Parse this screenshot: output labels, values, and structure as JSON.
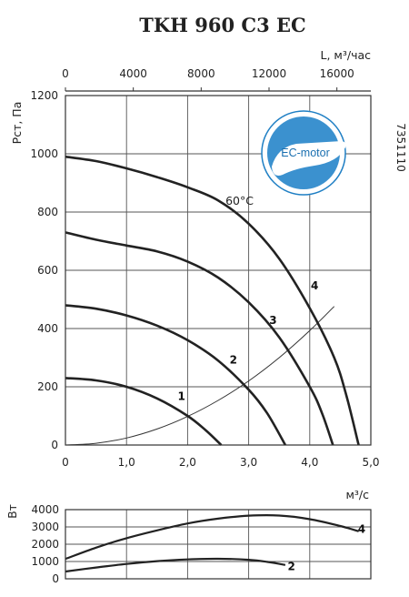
{
  "chart_data": [
    {
      "type": "line",
      "title": "TKH 960 C3 EC",
      "ylabel": "Pст, Па",
      "xlabel": "м³/с",
      "x2label": "L, м³/час",
      "xlim": [
        0,
        5
      ],
      "ylim": [
        0,
        1200
      ],
      "x2lim": [
        0,
        18000
      ],
      "x_ticks": [
        "0",
        "1,0",
        "2,0",
        "3,0",
        "4,0",
        "5,0"
      ],
      "x_tick_values": [
        0,
        1,
        2,
        3,
        4,
        5
      ],
      "y_ticks": [
        "0",
        "200",
        "400",
        "600",
        "800",
        "1000",
        "1200"
      ],
      "y_tick_values": [
        0,
        200,
        400,
        600,
        800,
        1000,
        1200
      ],
      "x2_ticks": [
        "0",
        "4000",
        "8000",
        "12000",
        "16000"
      ],
      "x2_tick_values": [
        0,
        4000,
        8000,
        12000,
        16000
      ],
      "grid": true,
      "annotation": "60°C",
      "annotation_at": [
        2.85,
        825
      ],
      "side_code": "7351110",
      "logo_text": "EC-motor",
      "series": [
        {
          "label": "1",
          "label_at": [
            1.9,
            155
          ],
          "points": [
            [
              0,
              230
            ],
            [
              0.5,
              222
            ],
            [
              1.0,
              200
            ],
            [
              1.5,
              160
            ],
            [
              2.0,
              100
            ],
            [
              2.3,
              50
            ],
            [
              2.55,
              0
            ]
          ]
        },
        {
          "label": "2",
          "label_at": [
            2.75,
            280
          ],
          "points": [
            [
              0,
              480
            ],
            [
              0.5,
              468
            ],
            [
              1.0,
              445
            ],
            [
              1.5,
              410
            ],
            [
              2.0,
              360
            ],
            [
              2.5,
              290
            ],
            [
              3.0,
              190
            ],
            [
              3.3,
              110
            ],
            [
              3.6,
              0
            ]
          ]
        },
        {
          "label": "3",
          "label_at": [
            3.4,
            415
          ],
          "points": [
            [
              0,
              730
            ],
            [
              0.5,
              705
            ],
            [
              1.0,
              685
            ],
            [
              1.5,
              665
            ],
            [
              2.0,
              630
            ],
            [
              2.5,
              575
            ],
            [
              3.0,
              490
            ],
            [
              3.5,
              370
            ],
            [
              4.0,
              200
            ],
            [
              4.2,
              110
            ],
            [
              4.38,
              0
            ]
          ]
        },
        {
          "label": "4",
          "label_at": [
            4.08,
            535
          ],
          "points": [
            [
              0,
              990
            ],
            [
              0.5,
              975
            ],
            [
              1.0,
              950
            ],
            [
              1.5,
              920
            ],
            [
              2.0,
              885
            ],
            [
              2.5,
              840
            ],
            [
              3.0,
              760
            ],
            [
              3.5,
              640
            ],
            [
              4.0,
              470
            ],
            [
              4.4,
              300
            ],
            [
              4.6,
              170
            ],
            [
              4.8,
              0
            ]
          ]
        }
      ],
      "system_curve": {
        "points": [
          [
            0,
            0
          ],
          [
            0.5,
            6
          ],
          [
            1.0,
            24
          ],
          [
            1.5,
            55
          ],
          [
            2.0,
            98
          ],
          [
            2.5,
            153
          ],
          [
            3.0,
            220
          ],
          [
            3.5,
            300
          ],
          [
            4.0,
            393
          ],
          [
            4.4,
            476
          ]
        ]
      }
    },
    {
      "type": "line",
      "ylabel": "Вт",
      "xlim": [
        0,
        5
      ],
      "ylim": [
        0,
        4000
      ],
      "y_ticks": [
        "0",
        "1000",
        "2000",
        "3000",
        "4000"
      ],
      "y_tick_values": [
        0,
        1000,
        2000,
        3000,
        4000
      ],
      "grid": true,
      "series": [
        {
          "label": "2",
          "label_at": [
            3.7,
            490
          ],
          "points": [
            [
              0,
              420
            ],
            [
              0.5,
              650
            ],
            [
              1.0,
              860
            ],
            [
              1.5,
              1020
            ],
            [
              2.0,
              1120
            ],
            [
              2.5,
              1160
            ],
            [
              3.0,
              1100
            ],
            [
              3.3,
              980
            ],
            [
              3.6,
              800
            ]
          ]
        },
        {
          "label": "4",
          "label_at": [
            4.85,
            2650
          ],
          "points": [
            [
              0,
              1150
            ],
            [
              0.5,
              1800
            ],
            [
              1.0,
              2350
            ],
            [
              1.5,
              2800
            ],
            [
              2.0,
              3200
            ],
            [
              2.5,
              3480
            ],
            [
              3.0,
              3650
            ],
            [
              3.5,
              3660
            ],
            [
              4.0,
              3450
            ],
            [
              4.5,
              3050
            ],
            [
              4.8,
              2750
            ]
          ]
        }
      ]
    }
  ]
}
